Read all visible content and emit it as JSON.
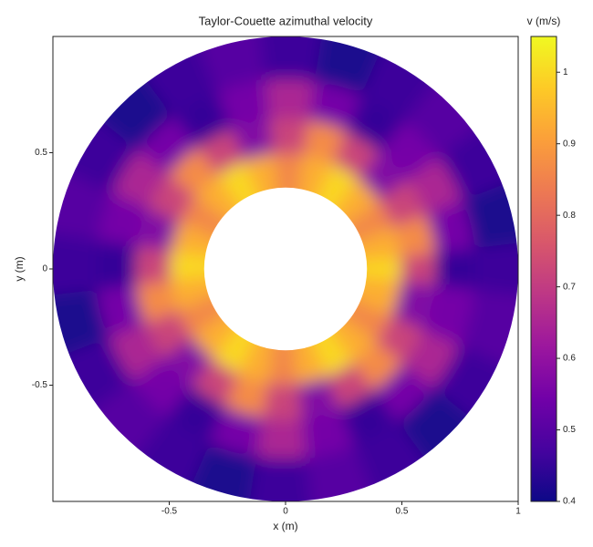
{
  "chart_data": {
    "type": "polar-heatmap",
    "title": "Taylor-Couette azimuthal velocity",
    "x_label": "x (m)",
    "y_label": "y (m)",
    "colorbar_label": "v (m/s)",
    "xlim": [
      -1,
      1
    ],
    "ylim": [
      -1,
      1
    ],
    "xticks": [
      -0.5,
      0,
      0.5,
      1
    ],
    "yticks": [
      -0.5,
      0,
      0.5
    ],
    "clim": [
      0.4,
      1.05
    ],
    "cticks": [
      0.4,
      0.5,
      0.6,
      0.7,
      0.8,
      0.9,
      1
    ],
    "colorscale": [
      "#0d0887",
      "#46039f",
      "#7201a8",
      "#9c179e",
      "#bd3786",
      "#d8576b",
      "#ed7953",
      "#fb9f3a",
      "#fdca26",
      "#f0f921"
    ],
    "r_edges": [
      0.35,
      0.5,
      0.65,
      0.82,
      1.0
    ],
    "theta": [
      0,
      15,
      30,
      45,
      60,
      75,
      90,
      105,
      120,
      135,
      150,
      165,
      180,
      195,
      210,
      225,
      240,
      255,
      270,
      285,
      300,
      315,
      330,
      345
    ],
    "values": [
      [
        1.0,
        0.93,
        0.86,
        0.93,
        1.0,
        0.93,
        0.86,
        0.93,
        1.0,
        0.93,
        0.86,
        0.93,
        1.0,
        0.93,
        0.86,
        0.93,
        1.0,
        0.93,
        0.86,
        0.93,
        1.0,
        0.93,
        0.86,
        0.93
      ],
      [
        0.72,
        0.87,
        0.72,
        0.57,
        0.72,
        0.87,
        0.72,
        0.57,
        0.72,
        0.87,
        0.72,
        0.57,
        0.72,
        0.87,
        0.72,
        0.57,
        0.72,
        0.87,
        0.72,
        0.57,
        0.72,
        0.87,
        0.72,
        0.57
      ],
      [
        0.45,
        0.55,
        0.65,
        0.55,
        0.45,
        0.55,
        0.65,
        0.55,
        0.45,
        0.55,
        0.65,
        0.55,
        0.45,
        0.55,
        0.65,
        0.55,
        0.45,
        0.55,
        0.65,
        0.55,
        0.45,
        0.55,
        0.65,
        0.55
      ],
      [
        0.46,
        0.42,
        0.46,
        0.5,
        0.46,
        0.42,
        0.46,
        0.5,
        0.46,
        0.42,
        0.46,
        0.5,
        0.46,
        0.42,
        0.46,
        0.5,
        0.46,
        0.42,
        0.46,
        0.5,
        0.46,
        0.42,
        0.46,
        0.5
      ]
    ]
  }
}
